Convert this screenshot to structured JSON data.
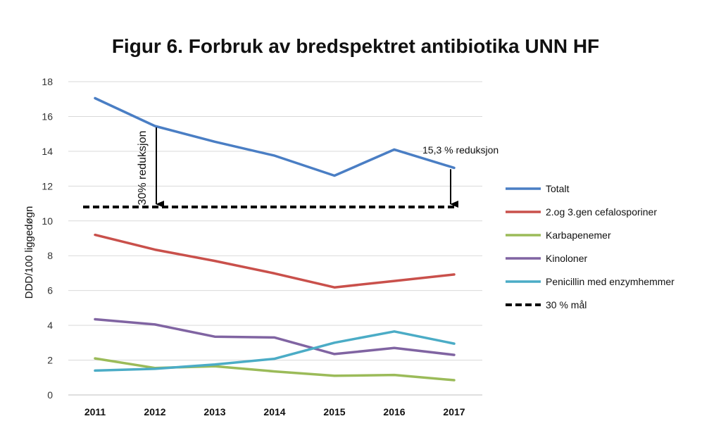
{
  "chart_data": {
    "type": "line",
    "title": "Figur 6. Forbruk av bredspektret antibiotika UNN HF",
    "xlabel": "",
    "ylabel": "DDD/100 liggedøgn",
    "categories": [
      "2011",
      "2012",
      "2013",
      "2014",
      "2015",
      "2016",
      "2017"
    ],
    "ylim": [
      0,
      18
    ],
    "yticks": [
      0,
      2,
      4,
      6,
      8,
      10,
      12,
      14,
      16,
      18
    ],
    "grid": true,
    "legend_position": "right",
    "series": [
      {
        "name": "Totalt",
        "color": "#4a7ec4",
        "dash": false,
        "values": [
          17.05,
          15.45,
          14.55,
          13.75,
          12.6,
          14.1,
          13.05
        ]
      },
      {
        "name": "2.og 3.gen cefalosporiner",
        "color": "#c9504b",
        "dash": false,
        "values": [
          9.2,
          8.35,
          7.7,
          6.98,
          6.18,
          6.55,
          6.92
        ]
      },
      {
        "name": "Karbapenemer",
        "color": "#9bbb59",
        "dash": false,
        "values": [
          2.1,
          1.55,
          1.65,
          1.35,
          1.1,
          1.15,
          0.85
        ]
      },
      {
        "name": "Kinoloner",
        "color": "#8064a2",
        "dash": false,
        "values": [
          4.35,
          4.05,
          3.35,
          3.3,
          2.35,
          2.7,
          2.3
        ]
      },
      {
        "name": "Penicillin med enzymhemmer",
        "color": "#4bacc6",
        "dash": false,
        "values": [
          1.4,
          1.5,
          1.75,
          2.08,
          3.0,
          3.65,
          2.95
        ]
      },
      {
        "name": "30 % mål",
        "color": "#000000",
        "dash": true,
        "values": [
          10.8,
          10.8,
          10.8,
          10.8,
          10.8,
          10.8,
          10.8
        ]
      }
    ],
    "annotations": [
      {
        "text": "30% reduksjon",
        "from_category": "2012",
        "from_value": 15.45,
        "to_value": 10.8
      },
      {
        "text": "15,3 % reduksjon",
        "from_category": "2017",
        "from_value": 13.05,
        "to_value": 10.8
      }
    ]
  }
}
